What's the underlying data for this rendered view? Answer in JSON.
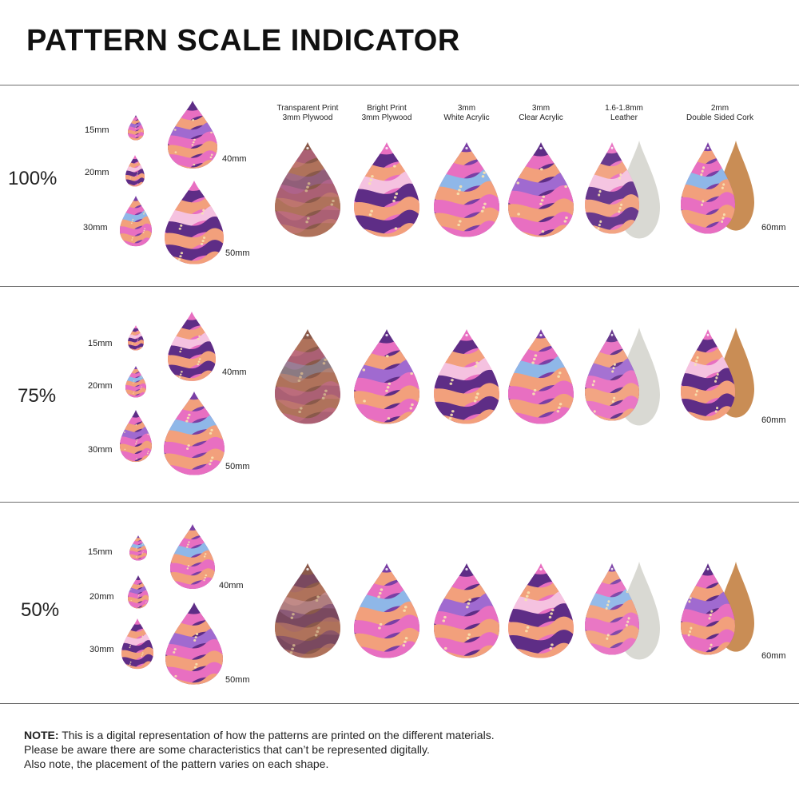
{
  "title": "PATTERN SCALE INDICATOR",
  "sizes": [
    "15mm",
    "20mm",
    "30mm",
    "40mm",
    "50mm"
  ],
  "large_size": "60mm",
  "materials": [
    {
      "line1": "Transparent Print",
      "line2": "3mm Plywood"
    },
    {
      "line1": "Bright Print",
      "line2": "3mm Plywood"
    },
    {
      "line1": "3mm",
      "line2": "White Acrylic"
    },
    {
      "line1": "3mm",
      "line2": "Clear Acrylic"
    },
    {
      "line1": "1.6-1.8mm",
      "line2": "Leather"
    },
    {
      "line1": "2mm",
      "line2": "Double Sided Cork"
    }
  ],
  "sections": [
    {
      "scale": "100%"
    },
    {
      "scale": "75%"
    },
    {
      "scale": "50%"
    }
  ],
  "note": {
    "label": "NOTE:",
    "line1": " This is a digital representation of how the patterns are printed on the different materials.",
    "line2": "Please be aware there are some characteristics that can’t be represented digitally.",
    "line3": "Also note, the placement of the pattern varies on each shape."
  },
  "colors": {
    "purple": "#5e2d86",
    "pink": "#e86fc1",
    "peach": "#f2a07c",
    "wood": "#8a5a4a",
    "leather": "#d9d9d3",
    "cork": "#c98d55"
  }
}
